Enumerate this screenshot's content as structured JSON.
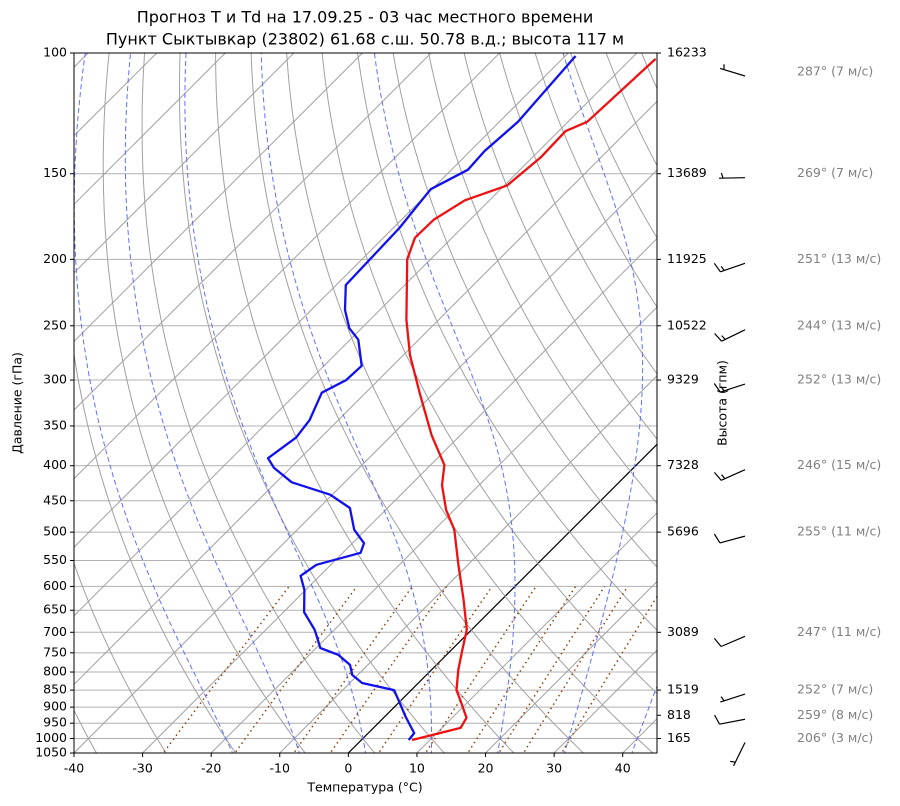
{
  "chart_data": {
    "type": "skewt",
    "title": "Прогноз T и Td на 17.09.25 - 03 час местного времени",
    "subtitle": "Пункт Сыктывкар (23802) 61.68 с.ш. 50.78 в.д.; высота 117 м",
    "x_label": "Температура (°C)",
    "y_label": "Давление (гПа)",
    "y2_label": "Высота (гпм)",
    "xlim": [
      -40,
      45
    ],
    "xticks": [
      -40,
      -30,
      -20,
      -10,
      0,
      10,
      20,
      30,
      40
    ],
    "ylim": [
      1050,
      100
    ],
    "yticks": [
      100,
      150,
      200,
      250,
      300,
      350,
      400,
      450,
      500,
      550,
      600,
      650,
      700,
      750,
      800,
      850,
      900,
      950,
      1000,
      1050
    ],
    "log_scale": true,
    "grid": true,
    "height_ticks": [
      {
        "pressure": 100,
        "height": 16233
      },
      {
        "pressure": 150,
        "height": 13689
      },
      {
        "pressure": 200,
        "height": 11925
      },
      {
        "pressure": 250,
        "height": 10522
      },
      {
        "pressure": 300,
        "height": 9329
      },
      {
        "pressure": 400,
        "height": 7328
      },
      {
        "pressure": 500,
        "height": 5696
      },
      {
        "pressure": 700,
        "height": 3089
      },
      {
        "pressure": 850,
        "height": 1519
      },
      {
        "pressure": 925,
        "height": 818
      },
      {
        "pressure": 1000,
        "height": 165
      }
    ],
    "temperature": {
      "color": "#ee1111",
      "pressure": [
        1005,
        965,
        933,
        879,
        850,
        794,
        743,
        694,
        628,
        558,
        496,
        464,
        427,
        399,
        361,
        315,
        276,
        245,
        200,
        186,
        175,
        164,
        156,
        142,
        130,
        126,
        102
      ],
      "values": [
        7.4,
        12.7,
        12.1,
        8.6,
        6.6,
        3.9,
        1.6,
        -0.7,
        -5.5,
        -11.4,
        -17.1,
        -21.2,
        -25.4,
        -28,
        -34.2,
        -41.8,
        -49,
        -54.7,
        -63.4,
        -65.4,
        -65.3,
        -63.6,
        -59.6,
        -58.8,
        -59,
        -57.2,
        -56.4
      ]
    },
    "dewpoint": {
      "color": "#1111ee",
      "pressure": [
        1005,
        982,
        930,
        879,
        850,
        830,
        808,
        781,
        755,
        738,
        706,
        694,
        654,
        607,
        579,
        558,
        536,
        519,
        496,
        461,
        441,
        423,
        403,
        390,
        364,
        343,
        313,
        300,
        286,
        262,
        252,
        237,
        218,
        180,
        158,
        148,
        139,
        126,
        101
      ],
      "values": [
        6.9,
        6.7,
        3.1,
        -0.4,
        -2.5,
        -8.2,
        -10.8,
        -12.6,
        -15.8,
        -19.4,
        -21.9,
        -22.9,
        -27,
        -30.2,
        -32.8,
        -32.1,
        -27.4,
        -28.3,
        -31.7,
        -35.5,
        -40.3,
        -47.7,
        -52.4,
        -54.7,
        -53.6,
        -54.2,
        -56.4,
        -54.7,
        -54.5,
        -58.8,
        -61.8,
        -65.1,
        -68.6,
        -69.1,
        -70.2,
        -67.6,
        -67.9,
        -67.3,
        -68.5
      ]
    },
    "winds": [
      {
        "pressure": 100,
        "direction": 287,
        "speed": 7,
        "label": "287° (7 м/с)"
      },
      {
        "pressure": 150,
        "direction": 269,
        "speed": 7,
        "label": "269° (7 м/с)"
      },
      {
        "pressure": 200,
        "direction": 251,
        "speed": 13,
        "label": "251° (13 м/с)"
      },
      {
        "pressure": 250,
        "direction": 244,
        "speed": 13,
        "label": "244° (13 м/с)"
      },
      {
        "pressure": 300,
        "direction": 252,
        "speed": 13,
        "label": "252° (13 м/с)"
      },
      {
        "pressure": 400,
        "direction": 246,
        "speed": 15,
        "label": "246° (15 м/с)"
      },
      {
        "pressure": 500,
        "direction": 255,
        "speed": 11,
        "label": "255° (11 м/с)"
      },
      {
        "pressure": 700,
        "direction": 247,
        "speed": 11,
        "label": "247° (11 м/с)"
      },
      {
        "pressure": 850,
        "direction": 252,
        "speed": 7,
        "label": "252° (7 м/с)"
      },
      {
        "pressure": 925,
        "direction": 259,
        "speed": 8,
        "label": "259° (8 м/с)"
      },
      {
        "pressure": 1000,
        "direction": 206,
        "speed": 3,
        "label": "206° (3 м/с)"
      }
    ]
  }
}
